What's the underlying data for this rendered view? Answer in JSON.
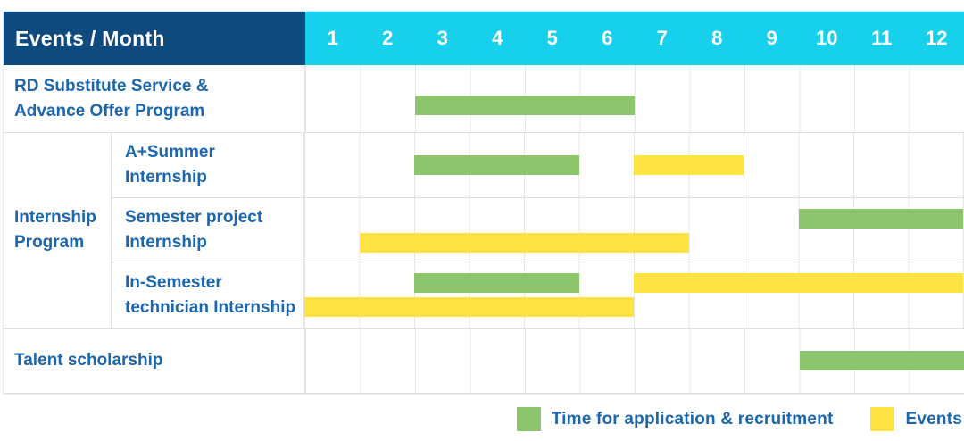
{
  "colors": {
    "navy": "#0f4a7e",
    "cyan": "#17d1ec",
    "green": "#8cc56b",
    "yellow": "#ffe340",
    "label_text": "#1b66ae",
    "grid": "#e7e7e7"
  },
  "header": {
    "title": "Events / Month",
    "months": [
      "1",
      "2",
      "3",
      "4",
      "5",
      "6",
      "7",
      "8",
      "9",
      "10",
      "11",
      "12"
    ]
  },
  "chart_data": {
    "type": "gantt",
    "title": "Events / Month",
    "unit": "month",
    "axis": {
      "min": 1,
      "max": 12,
      "ticks": [
        1,
        2,
        3,
        4,
        5,
        6,
        7,
        8,
        9,
        10,
        11,
        12
      ]
    },
    "legend": [
      {
        "type": "application",
        "label": "Time for application & recruitment",
        "color": "#8cc56b"
      },
      {
        "type": "event",
        "label": "Events",
        "color": "#ffe340"
      }
    ],
    "rows": [
      {
        "group": null,
        "label": "RD Substitute Service &\nAdvance Offer Program",
        "bars": [
          {
            "type": "application",
            "start": 3,
            "end": 6,
            "line": 0
          }
        ]
      },
      {
        "group": "Internship\nProgram",
        "label": "A+Summer\nInternship",
        "bars": [
          {
            "type": "application",
            "start": 3,
            "end": 5,
            "line": 0
          },
          {
            "type": "event",
            "start": 7,
            "end": 8,
            "line": 0
          }
        ]
      },
      {
        "group": "Internship\nProgram",
        "label": "Semester project\nInternship",
        "bars": [
          {
            "type": "application",
            "start": 10,
            "end": 12,
            "line": 0
          },
          {
            "type": "event",
            "start": 2,
            "end": 7,
            "line": 1
          }
        ]
      },
      {
        "group": "Internship\nProgram",
        "label": "In-Semester\ntechnician Internship",
        "bars": [
          {
            "type": "application",
            "start": 3,
            "end": 5,
            "line": 0
          },
          {
            "type": "event",
            "start": 7,
            "end": 12,
            "line": 0
          },
          {
            "type": "event",
            "start": 1,
            "end": 6,
            "line": 1
          }
        ]
      },
      {
        "group": null,
        "label": "Talent scholarship",
        "bars": [
          {
            "type": "application",
            "start": 10,
            "end": 12,
            "line": 0
          }
        ]
      }
    ]
  }
}
